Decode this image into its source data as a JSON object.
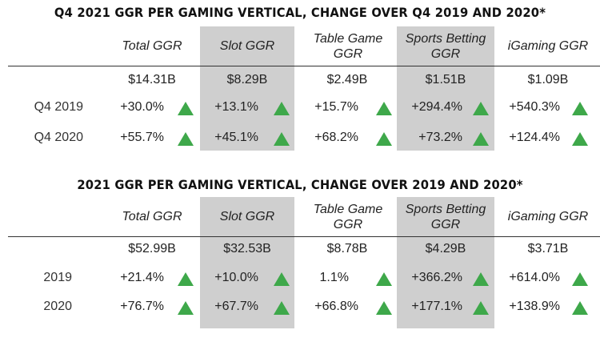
{
  "colors": {
    "shade": "#cfcfcf",
    "up_arrow": "#3ea84a"
  },
  "columns": [
    "Total GGR",
    "Slot GGR",
    "Table Game GGR",
    "Sports Betting GGR",
    "iGaming GGR"
  ],
  "tables": [
    {
      "title": "Q4 2021 GGR PER GAMING VERTICAL, CHANGE OVER Q4 2019 AND 2020*",
      "totals": [
        "$14.31B",
        "$8.29B",
        "$2.49B",
        "$1.51B",
        "$1.09B"
      ],
      "rows": [
        {
          "label": "Q4 2019",
          "values": [
            "+30.0%",
            "+13.1%",
            "+15.7%",
            "+294.4%",
            "+540.3%"
          ],
          "icon": "up-triangle-icon"
        },
        {
          "label": "Q4 2020",
          "values": [
            "+55.7%",
            "+45.1%",
            "+68.2%",
            "+73.2%",
            "+124.4%"
          ],
          "icon": "up-triangle-icon"
        }
      ]
    },
    {
      "title": "2021 GGR PER GAMING VERTICAL, CHANGE OVER 2019 AND 2020*",
      "totals": [
        "$52.99B",
        "$32.53B",
        "$8.78B",
        "$4.29B",
        "$3.71B"
      ],
      "rows": [
        {
          "label": "2019",
          "values": [
            "+21.4%",
            "+10.0%",
            "1.1%",
            "+366.2%",
            "+614.0%"
          ],
          "icon": "up-triangle-icon"
        },
        {
          "label": "2020",
          "values": [
            "+76.7%",
            "+67.7%",
            "+66.8%",
            "+177.1%",
            "+138.9%"
          ],
          "icon": "up-triangle-icon"
        }
      ]
    }
  ]
}
